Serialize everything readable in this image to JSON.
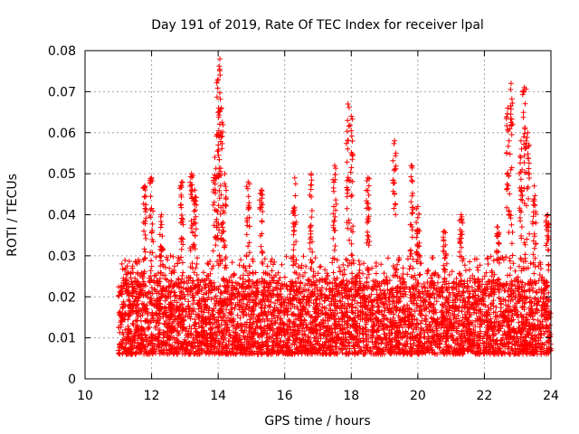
{
  "chart_data": {
    "type": "scatter",
    "title": "Day 191 of 2019, Rate Of TEC Index for receiver lpal",
    "xlabel": "GPS time / hours",
    "ylabel": "ROTI / TECUs",
    "xlim": [
      10,
      24
    ],
    "ylim": [
      0,
      0.08
    ],
    "x_ticks": [
      "10",
      "12",
      "14",
      "16",
      "18",
      "20",
      "22",
      "24"
    ],
    "y_ticks": [
      "0",
      "0.01",
      "0.02",
      "0.03",
      "0.04",
      "0.05",
      "0.06",
      "0.07",
      "0.08"
    ],
    "grid": true,
    "marker": "+",
    "color": "#ff0000",
    "data_start_hour": 11.0,
    "data_end_hour": 24.0,
    "typical_range": [
      0.004,
      0.03
    ],
    "peaks": [
      {
        "x": 11.8,
        "y": 0.047
      },
      {
        "x": 12.0,
        "y": 0.049
      },
      {
        "x": 12.3,
        "y": 0.04
      },
      {
        "x": 12.9,
        "y": 0.048
      },
      {
        "x": 13.2,
        "y": 0.05
      },
      {
        "x": 13.3,
        "y": 0.046
      },
      {
        "x": 13.9,
        "y": 0.054
      },
      {
        "x": 14.0,
        "y": 0.073
      },
      {
        "x": 14.05,
        "y": 0.078
      },
      {
        "x": 14.1,
        "y": 0.066
      },
      {
        "x": 14.2,
        "y": 0.05
      },
      {
        "x": 14.9,
        "y": 0.048
      },
      {
        "x": 15.3,
        "y": 0.046
      },
      {
        "x": 16.3,
        "y": 0.049
      },
      {
        "x": 16.8,
        "y": 0.05
      },
      {
        "x": 17.5,
        "y": 0.052
      },
      {
        "x": 17.9,
        "y": 0.067
      },
      {
        "x": 18.0,
        "y": 0.064
      },
      {
        "x": 18.5,
        "y": 0.049
      },
      {
        "x": 19.3,
        "y": 0.058
      },
      {
        "x": 19.8,
        "y": 0.052
      },
      {
        "x": 20.0,
        "y": 0.042
      },
      {
        "x": 20.8,
        "y": 0.036
      },
      {
        "x": 21.3,
        "y": 0.04
      },
      {
        "x": 22.4,
        "y": 0.037
      },
      {
        "x": 22.7,
        "y": 0.066
      },
      {
        "x": 22.8,
        "y": 0.072
      },
      {
        "x": 23.1,
        "y": 0.058
      },
      {
        "x": 23.2,
        "y": 0.071
      },
      {
        "x": 23.3,
        "y": 0.06
      },
      {
        "x": 23.5,
        "y": 0.047
      },
      {
        "x": 23.9,
        "y": 0.04
      }
    ]
  }
}
